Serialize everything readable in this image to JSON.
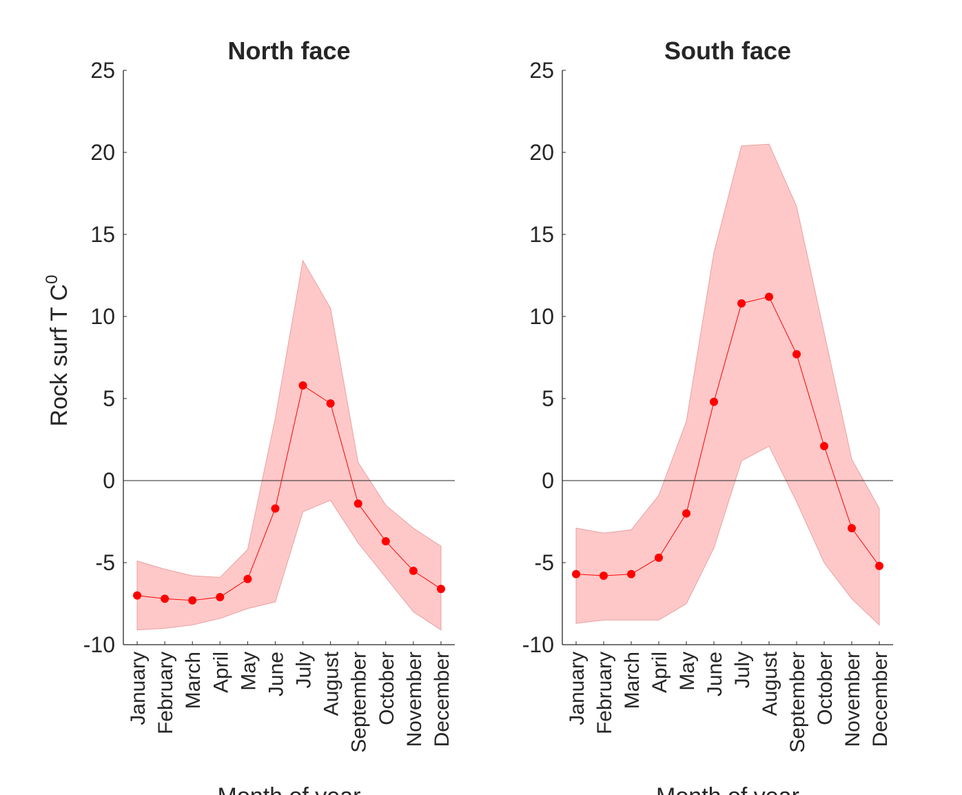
{
  "chart_data": [
    {
      "type": "line",
      "title": "North face",
      "x_label": "Month of year",
      "y_label": "Rock surf T C",
      "y_label_sup": "0",
      "categories": [
        "January",
        "February",
        "March",
        "April",
        "May",
        "June",
        "July",
        "August",
        "September",
        "October",
        "November",
        "December"
      ],
      "values": [
        -7.0,
        -7.2,
        -7.3,
        -7.1,
        -6.0,
        -1.7,
        5.8,
        4.7,
        -1.4,
        -3.7,
        -5.5,
        -6.6
      ],
      "upper": [
        -4.9,
        -5.4,
        -5.8,
        -5.9,
        -4.2,
        3.8,
        13.4,
        10.5,
        1.1,
        -1.5,
        -2.9,
        -4.0
      ],
      "lower": [
        -9.1,
        -9.0,
        -8.8,
        -8.4,
        -7.8,
        -7.4,
        -1.9,
        -1.2,
        -3.8,
        -5.9,
        -8.0,
        -9.1
      ],
      "color": "#ff0000",
      "band_color": "#ffc8c8",
      "ylim": [
        -10,
        25
      ],
      "yticks": [
        -10,
        -5,
        0,
        5,
        10,
        15,
        20,
        25
      ],
      "zero_line": true
    },
    {
      "type": "line",
      "title": "South face",
      "x_label": "Month of year",
      "categories": [
        "January",
        "February",
        "March",
        "April",
        "May",
        "June",
        "July",
        "August",
        "September",
        "October",
        "November",
        "December"
      ],
      "values": [
        -5.7,
        -5.8,
        -5.7,
        -4.7,
        -2.0,
        4.8,
        10.8,
        11.2,
        7.7,
        2.1,
        -2.9,
        -5.2
      ],
      "upper": [
        -2.9,
        -3.2,
        -3.0,
        -0.9,
        3.6,
        13.9,
        20.4,
        20.5,
        16.7,
        9.0,
        1.3,
        -1.7
      ],
      "lower": [
        -8.7,
        -8.5,
        -8.5,
        -8.5,
        -7.5,
        -4.1,
        1.2,
        2.1,
        -1.3,
        -5.0,
        -7.2,
        -8.8
      ],
      "color": "#ff0000",
      "band_color": "#ffc8c8",
      "ylim": [
        -10,
        25
      ],
      "yticks": [
        -10,
        -5,
        0,
        5,
        10,
        15,
        20,
        25
      ],
      "zero_line": true
    }
  ]
}
